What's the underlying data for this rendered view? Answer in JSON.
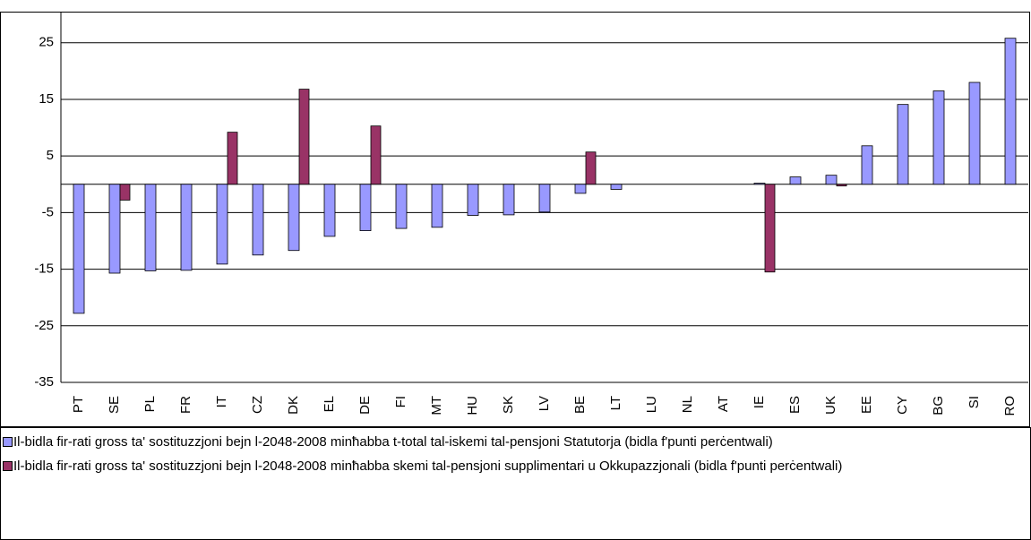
{
  "chart_data": {
    "type": "bar",
    "categories": [
      "PT",
      "SE",
      "PL",
      "FR",
      "IT",
      "CZ",
      "DK",
      "EL",
      "DE",
      "FI",
      "MT",
      "HU",
      "SK",
      "LV",
      "BE",
      "LT",
      "LU",
      "NL",
      "AT",
      "IE",
      "ES",
      "UK",
      "EE",
      "CY",
      "BG",
      "SI",
      "RO"
    ],
    "series": [
      {
        "name": "Il-bidla fir-rati gross ta' sostituzzjoni bejn l-2048-2008 minħabba t-total tal-iskemi tal-pensjoni Statutorja (bidla f'punti perċentwali)",
        "color": "#9999ff",
        "values": [
          -22.8,
          -15.7,
          -15.3,
          -15.2,
          -14.1,
          -12.5,
          -11.7,
          -9.2,
          -8.2,
          -7.8,
          -7.6,
          -5.5,
          -5.4,
          -4.9,
          -1.6,
          -0.9,
          null,
          null,
          null,
          0.2,
          1.3,
          1.6,
          6.8,
          14.1,
          16.5,
          18.0,
          25.8
        ]
      },
      {
        "name": "Il-bidla fir-rati gross ta' sostituzzjoni bejn l-2048-2008 minħabba skemi tal-pensjoni supplimentari u Okkupazzjonali (bidla f'punti perċentwali)",
        "color": "#993366",
        "values": [
          null,
          -2.8,
          null,
          null,
          9.2,
          null,
          16.8,
          null,
          10.3,
          null,
          null,
          null,
          null,
          null,
          5.7,
          null,
          null,
          null,
          null,
          -15.5,
          null,
          -0.3,
          null,
          null,
          null,
          null,
          null
        ]
      }
    ],
    "ylim": [
      -35,
      30.5
    ],
    "yticks": [
      -35,
      -25,
      -15,
      -5,
      5,
      15,
      25
    ],
    "grid": true
  }
}
